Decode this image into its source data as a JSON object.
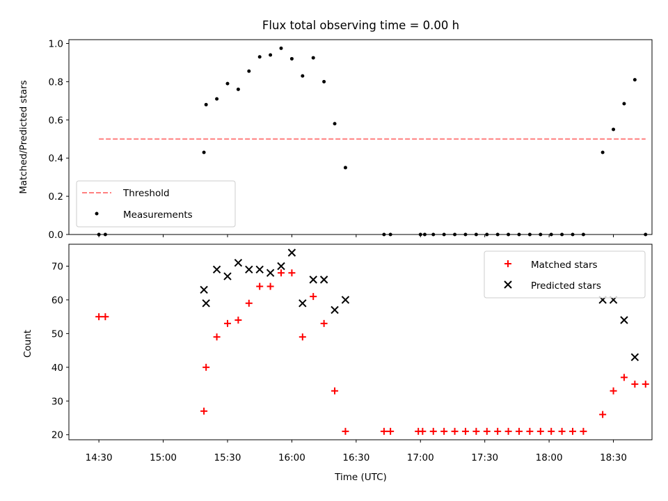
{
  "chart_data": {
    "title": "Flux total observing time = 0.00 h",
    "xlabel": "Time (UTC)",
    "x_unit": "time",
    "xlim": [
      "14:16",
      "18:48"
    ],
    "xticks": [
      "14:30",
      "15:00",
      "15:30",
      "16:00",
      "16:30",
      "17:00",
      "17:30",
      "18:00",
      "18:30"
    ],
    "panels": [
      {
        "type": "scatter",
        "ylabel": "Matched/Predicted stars",
        "ylim": [
          0,
          1.02
        ],
        "yticks": [
          "0.0",
          "0.2",
          "0.4",
          "0.6",
          "0.8",
          "1.0"
        ],
        "legend_position": "lower-left",
        "threshold": {
          "name": "Threshold",
          "value": 0.5,
          "x_range": [
            "14:30",
            "18:45"
          ],
          "color": "#ff7f7f"
        },
        "series": [
          {
            "name": "Measurements",
            "color": "#000000",
            "points": [
              [
                "14:30",
                0.0
              ],
              [
                "14:33",
                0.0
              ],
              [
                "15:19",
                0.43
              ],
              [
                "15:20",
                0.68
              ],
              [
                "15:25",
                0.71
              ],
              [
                "15:30",
                0.79
              ],
              [
                "15:35",
                0.76
              ],
              [
                "15:40",
                0.855
              ],
              [
                "15:45",
                0.93
              ],
              [
                "15:50",
                0.94
              ],
              [
                "15:55",
                0.975
              ],
              [
                "16:00",
                0.92
              ],
              [
                "16:05",
                0.83
              ],
              [
                "16:10",
                0.925
              ],
              [
                "16:15",
                0.8
              ],
              [
                "16:20",
                0.58
              ],
              [
                "16:25",
                0.35
              ],
              [
                "16:43",
                0.0
              ],
              [
                "16:46",
                0.0
              ],
              [
                "17:00",
                0.0
              ],
              [
                "17:02",
                0.0
              ],
              [
                "17:06",
                0.0
              ],
              [
                "17:11",
                0.0
              ],
              [
                "17:16",
                0.0
              ],
              [
                "17:21",
                0.0
              ],
              [
                "17:26",
                0.0
              ],
              [
                "17:31",
                0.0
              ],
              [
                "17:36",
                0.0
              ],
              [
                "17:41",
                0.0
              ],
              [
                "17:46",
                0.0
              ],
              [
                "17:51",
                0.0
              ],
              [
                "17:56",
                0.0
              ],
              [
                "18:01",
                0.0
              ],
              [
                "18:06",
                0.0
              ],
              [
                "18:11",
                0.0
              ],
              [
                "18:16",
                0.0
              ],
              [
                "18:25",
                0.43
              ],
              [
                "18:30",
                0.55
              ],
              [
                "18:35",
                0.685
              ],
              [
                "18:40",
                0.81
              ],
              [
                "18:45",
                0.0
              ]
            ]
          }
        ]
      },
      {
        "type": "scatter",
        "ylabel": "Count",
        "ylim": [
          18.5,
          76.5
        ],
        "yticks": [
          "20",
          "30",
          "40",
          "50",
          "60",
          "70"
        ],
        "legend_position": "top-right",
        "series": [
          {
            "name": "Matched stars",
            "marker": "+",
            "color": "#ff0000",
            "points": [
              [
                "14:30",
                55
              ],
              [
                "14:33",
                55
              ],
              [
                "15:19",
                27
              ],
              [
                "15:20",
                40
              ],
              [
                "15:25",
                49
              ],
              [
                "15:30",
                53
              ],
              [
                "15:35",
                54
              ],
              [
                "15:40",
                59
              ],
              [
                "15:45",
                64
              ],
              [
                "15:50",
                64
              ],
              [
                "15:55",
                68
              ],
              [
                "16:00",
                68
              ],
              [
                "16:05",
                49
              ],
              [
                "16:10",
                61
              ],
              [
                "16:15",
                53
              ],
              [
                "16:20",
                33
              ],
              [
                "16:25",
                21
              ],
              [
                "16:43",
                21
              ],
              [
                "16:46",
                21
              ],
              [
                "16:59",
                21
              ],
              [
                "17:01",
                21
              ],
              [
                "17:06",
                21
              ],
              [
                "17:11",
                21
              ],
              [
                "17:16",
                21
              ],
              [
                "17:21",
                21
              ],
              [
                "17:26",
                21
              ],
              [
                "17:31",
                21
              ],
              [
                "17:36",
                21
              ],
              [
                "17:41",
                21
              ],
              [
                "17:46",
                21
              ],
              [
                "17:51",
                21
              ],
              [
                "17:56",
                21
              ],
              [
                "18:01",
                21
              ],
              [
                "18:06",
                21
              ],
              [
                "18:11",
                21
              ],
              [
                "18:16",
                21
              ],
              [
                "18:25",
                26
              ],
              [
                "18:30",
                33
              ],
              [
                "18:35",
                37
              ],
              [
                "18:40",
                35
              ],
              [
                "18:45",
                35
              ]
            ]
          },
          {
            "name": "Predicted stars",
            "marker": "x",
            "color": "#000000",
            "points": [
              [
                "15:19",
                63
              ],
              [
                "15:20",
                59
              ],
              [
                "15:25",
                69
              ],
              [
                "15:30",
                67
              ],
              [
                "15:35",
                71
              ],
              [
                "15:40",
                69
              ],
              [
                "15:45",
                69
              ],
              [
                "15:50",
                68
              ],
              [
                "15:55",
                70
              ],
              [
                "16:00",
                74
              ],
              [
                "16:05",
                59
              ],
              [
                "16:10",
                66
              ],
              [
                "16:15",
                66
              ],
              [
                "16:20",
                57
              ],
              [
                "16:25",
                60
              ],
              [
                "18:25",
                60
              ],
              [
                "18:30",
                60
              ],
              [
                "18:35",
                54
              ],
              [
                "18:40",
                43
              ]
            ]
          }
        ]
      }
    ]
  }
}
